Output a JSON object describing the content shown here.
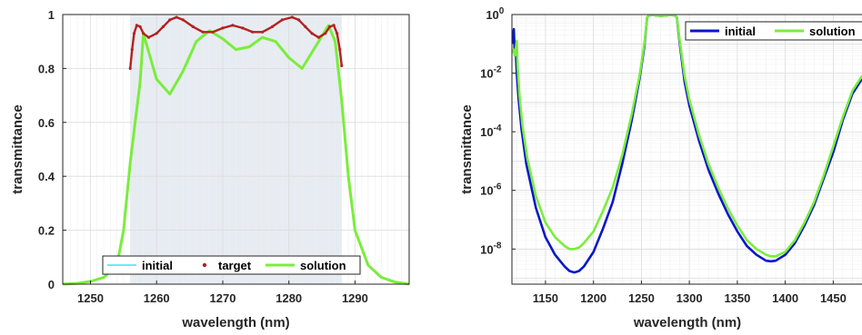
{
  "colors": {
    "initial_left": "#40e0f0",
    "target": "#b22222",
    "solution": "#7aed3c",
    "initial_right": "#0a17c9",
    "band_fill": "#e6ecf1",
    "axis": "#262626",
    "grid": "#dcdcdc"
  },
  "chart_data": [
    {
      "type": "line",
      "xlabel": "wavelength (nm)",
      "ylabel": "transmittance",
      "xlim": [
        1245.8,
        1298.2
      ],
      "ylim": [
        0,
        1
      ],
      "xticks": [
        1250,
        1260,
        1270,
        1280,
        1290
      ],
      "xtick_labels": [
        "1250",
        "1260",
        "1270",
        "1280",
        "1290"
      ],
      "yticks": [
        0,
        0.2,
        0.4,
        0.6,
        0.8,
        1
      ],
      "ytick_labels": [
        "0",
        "0.2",
        "0.4",
        "0.6",
        "0.8",
        "1"
      ],
      "grid": true,
      "legend_position": "bottom-right, horizontal",
      "shaded_band": [
        1256,
        1288
      ],
      "series": [
        {
          "name": "initial",
          "style": "line",
          "x": [
            1256,
            1256.3,
            1256.6,
            1257,
            1257.5,
            1258,
            1258.8,
            1260,
            1261,
            1262,
            1263,
            1264,
            1265.5,
            1267,
            1268.5,
            1270,
            1271.5,
            1273,
            1274.5,
            1276,
            1277.5,
            1279,
            1280.5,
            1281.5,
            1282.5,
            1283.5,
            1284.5,
            1285.5,
            1286.2,
            1286.8,
            1287.3,
            1287.7,
            1288
          ],
          "y": [
            0.8,
            0.87,
            0.93,
            0.96,
            0.955,
            0.93,
            0.915,
            0.93,
            0.955,
            0.98,
            0.99,
            0.98,
            0.955,
            0.935,
            0.935,
            0.95,
            0.96,
            0.95,
            0.935,
            0.935,
            0.955,
            0.98,
            0.99,
            0.98,
            0.955,
            0.93,
            0.915,
            0.93,
            0.955,
            0.96,
            0.93,
            0.87,
            0.81
          ]
        },
        {
          "name": "target",
          "style": "points",
          "x": [
            1256,
            1256.3,
            1256.6,
            1257,
            1257.5,
            1258,
            1258.8,
            1260,
            1261,
            1262,
            1263,
            1264,
            1265.5,
            1267,
            1268.5,
            1270,
            1271.5,
            1273,
            1274.5,
            1276,
            1277.5,
            1279,
            1280.5,
            1281.5,
            1282.5,
            1283.5,
            1284.5,
            1285.5,
            1286.2,
            1286.8,
            1287.3,
            1287.7,
            1288
          ],
          "y": [
            0.8,
            0.87,
            0.93,
            0.96,
            0.955,
            0.93,
            0.915,
            0.93,
            0.955,
            0.98,
            0.99,
            0.98,
            0.955,
            0.935,
            0.935,
            0.95,
            0.96,
            0.95,
            0.935,
            0.935,
            0.955,
            0.98,
            0.99,
            0.98,
            0.955,
            0.93,
            0.915,
            0.93,
            0.955,
            0.96,
            0.93,
            0.87,
            0.81
          ]
        },
        {
          "name": "solution",
          "style": "line",
          "x": [
            1245.8,
            1248,
            1250,
            1252,
            1254,
            1255,
            1256,
            1257.5,
            1258,
            1260,
            1262,
            1264,
            1266,
            1268,
            1270,
            1272,
            1274,
            1276,
            1278,
            1280,
            1282,
            1284,
            1286,
            1287,
            1288,
            1289,
            1290,
            1292,
            1294,
            1296,
            1298.2
          ],
          "y": [
            0,
            0.003,
            0.01,
            0.025,
            0.07,
            0.2,
            0.45,
            0.75,
            0.93,
            0.76,
            0.705,
            0.79,
            0.9,
            0.94,
            0.91,
            0.87,
            0.88,
            0.915,
            0.9,
            0.84,
            0.8,
            0.88,
            0.96,
            0.9,
            0.68,
            0.4,
            0.2,
            0.07,
            0.025,
            0.008,
            0
          ]
        }
      ]
    },
    {
      "type": "line",
      "xlabel": "wavelength (nm)",
      "ylabel": "transmittance",
      "xlim": [
        1115,
        1480
      ],
      "ylim_log10": [
        -9.2,
        0
      ],
      "yscale": "log",
      "xticks": [
        1150,
        1200,
        1250,
        1300,
        1350,
        1400,
        1450
      ],
      "xtick_labels": [
        "1150",
        "1200",
        "1250",
        "1300",
        "1350",
        "1400",
        "1450"
      ],
      "ytick_labels": [
        {
          "base": "10",
          "exp": "0"
        },
        {
          "base": "10",
          "exp": "-2"
        },
        {
          "base": "10",
          "exp": "-4"
        },
        {
          "base": "10",
          "exp": "-6"
        },
        {
          "base": "10",
          "exp": "-8"
        }
      ],
      "ytick_exponents": [
        0,
        -2,
        -4,
        -6,
        -8
      ],
      "grid": true,
      "legend_position": "top-right, horizontal",
      "series": [
        {
          "name": "initial",
          "x": [
            1115,
            1117,
            1118,
            1119,
            1120,
            1122,
            1125,
            1130,
            1140,
            1150,
            1160,
            1170,
            1175,
            1180,
            1185,
            1190,
            1200,
            1210,
            1220,
            1230,
            1240,
            1248,
            1253,
            1256,
            1258,
            1262,
            1270,
            1280,
            1285,
            1287,
            1290,
            1295,
            1300,
            1310,
            1320,
            1330,
            1340,
            1350,
            1360,
            1370,
            1380,
            1385,
            1390,
            1400,
            1410,
            1420,
            1430,
            1440,
            1450,
            1460,
            1470,
            1480
          ],
          "y_log10": [
            -1,
            -0.5,
            -1.4,
            -1.2,
            -2,
            -2.9,
            -3.9,
            -5.1,
            -6.6,
            -7.6,
            -8.2,
            -8.6,
            -8.75,
            -8.8,
            -8.75,
            -8.6,
            -8.1,
            -7.3,
            -6.4,
            -5.1,
            -3.6,
            -2.2,
            -1.1,
            -0.1,
            -0.03,
            -0.02,
            -0.05,
            -0.02,
            -0.03,
            -0.1,
            -1,
            -2.3,
            -3.1,
            -4.3,
            -5.3,
            -6.1,
            -6.8,
            -7.4,
            -7.9,
            -8.2,
            -8.4,
            -8.42,
            -8.4,
            -8.2,
            -7.8,
            -7.2,
            -6.5,
            -5.6,
            -4.7,
            -3.6,
            -2.7,
            -2.2
          ]
        },
        {
          "name": "solution",
          "x": [
            1115,
            1117,
            1118,
            1120,
            1121,
            1123,
            1126,
            1131,
            1140,
            1150,
            1160,
            1170,
            1175,
            1180,
            1185,
            1190,
            1200,
            1210,
            1220,
            1230,
            1240,
            1248,
            1253,
            1256,
            1258,
            1262,
            1270,
            1280,
            1285,
            1287,
            1290,
            1295,
            1300,
            1310,
            1320,
            1330,
            1340,
            1350,
            1360,
            1370,
            1380,
            1385,
            1390,
            1400,
            1410,
            1420,
            1430,
            1440,
            1450,
            1460,
            1470,
            1480
          ],
          "y_log10": [
            -1.3,
            -1.2,
            -1.4,
            -0.9,
            -1.8,
            -2.8,
            -3.8,
            -4.9,
            -6.2,
            -7.1,
            -7.6,
            -7.9,
            -8,
            -8,
            -7.95,
            -7.8,
            -7.4,
            -6.7,
            -5.9,
            -4.8,
            -3.4,
            -2.1,
            -1,
            -0.1,
            -0.03,
            -0.02,
            -0.05,
            -0.02,
            -0.03,
            -0.1,
            -0.9,
            -2.1,
            -2.9,
            -4.1,
            -5.1,
            -5.9,
            -6.6,
            -7.2,
            -7.7,
            -8,
            -8.2,
            -8.25,
            -8.25,
            -8.1,
            -7.7,
            -7.1,
            -6.4,
            -5.5,
            -4.5,
            -3.5,
            -2.6,
            -2.1
          ]
        }
      ]
    }
  ]
}
